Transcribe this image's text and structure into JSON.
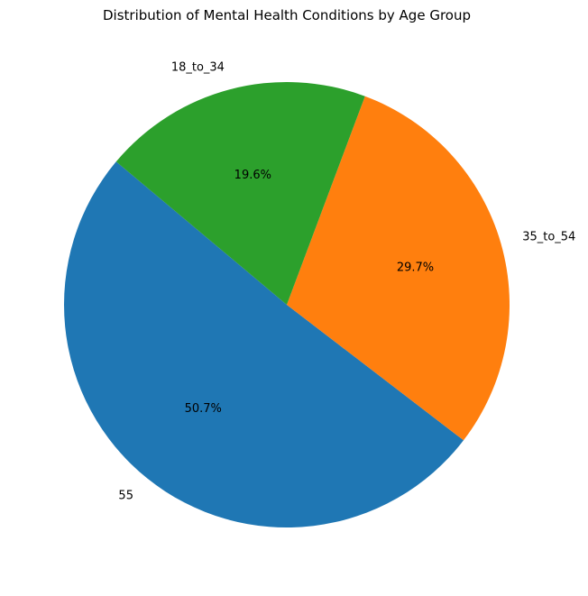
{
  "chart_data": {
    "type": "pie",
    "title": "Distribution of Mental Health Conditions by Age Group",
    "start_angle_deg": 140,
    "direction": "counterclockwise",
    "slices": [
      {
        "label": "55",
        "value": 50.7,
        "pct_text": "50.7%",
        "color": "#1f77b4"
      },
      {
        "label": "35_to_54",
        "value": 29.7,
        "pct_text": "29.7%",
        "color": "#ff7f0e"
      },
      {
        "label": "18_to_34",
        "value": 19.6,
        "pct_text": "19.6%",
        "color": "#2ca02c"
      }
    ]
  }
}
